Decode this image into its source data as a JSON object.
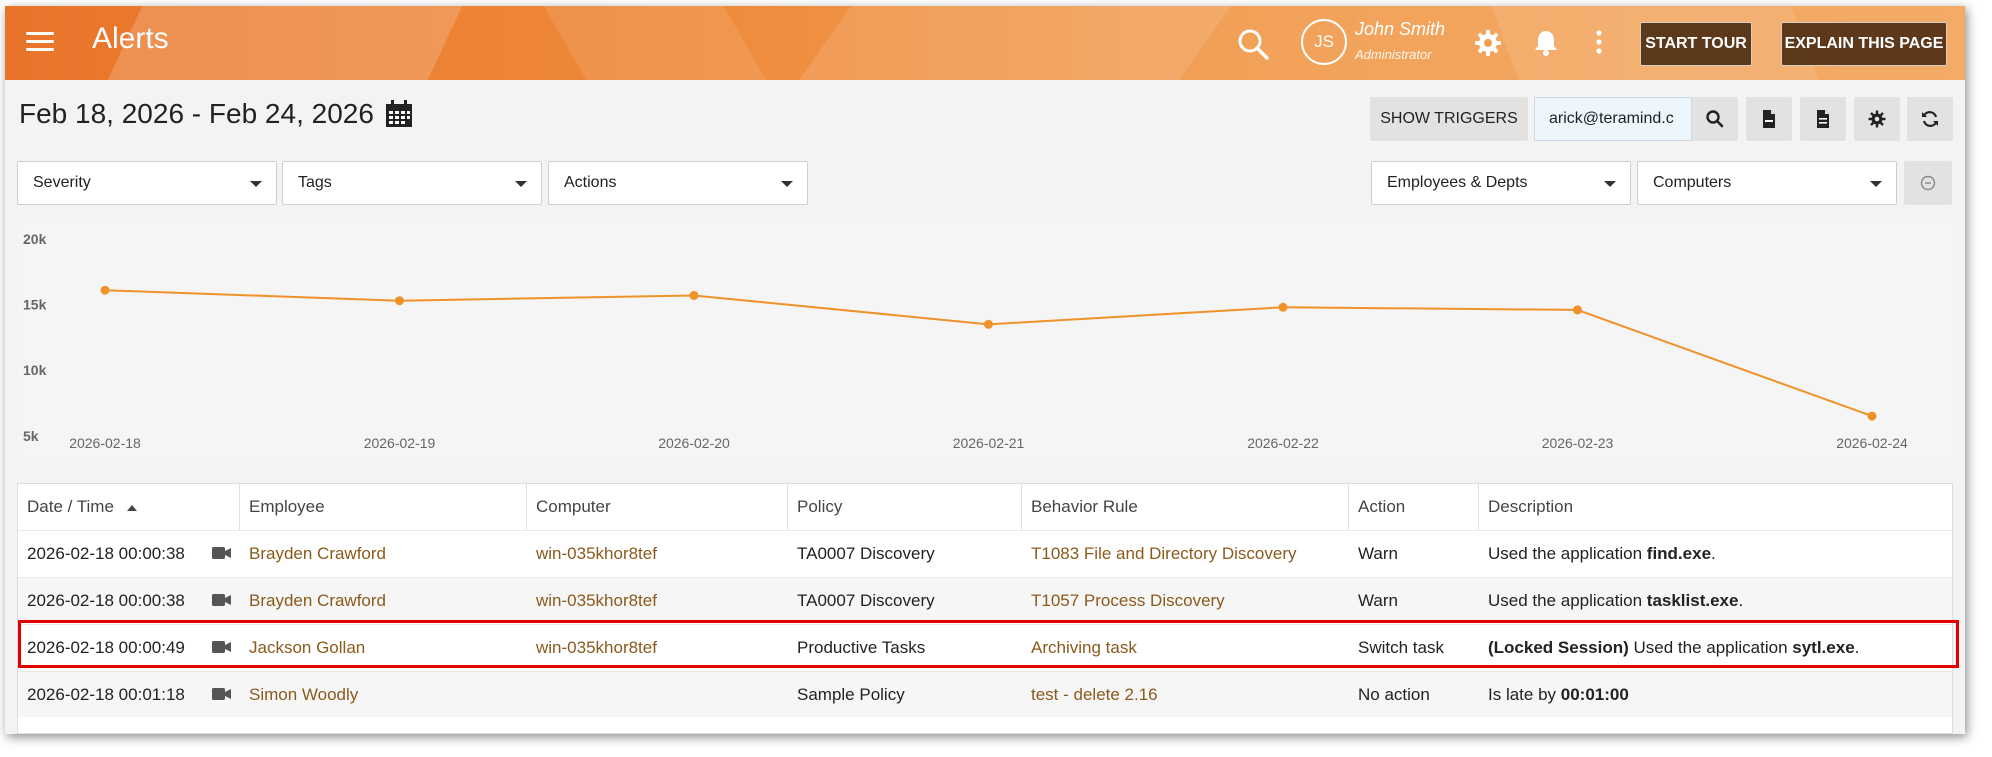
{
  "header": {
    "title": "Alerts",
    "user_initials": "JS",
    "user_name": "John Smith",
    "user_role": "Administrator",
    "start_tour": "START TOUR",
    "explain_page": "EXPLAIN THIS PAGE"
  },
  "toolbar": {
    "date_range": "Feb 18, 2026 - Feb 24, 2026",
    "show_triggers": "SHOW TRIGGERS",
    "search_value": "arick@teramind.c"
  },
  "filters": {
    "severity": "Severity",
    "tags": "Tags",
    "actions": "Actions",
    "employees": "Employees & Depts",
    "computers": "Computers"
  },
  "colors": {
    "accent": "#e8742a",
    "link": "#8a5a1c",
    "chart_line": "#f0922a",
    "highlight": "#e00000"
  },
  "chart_data": {
    "type": "line",
    "x": [
      "2026-02-18",
      "2026-02-19",
      "2026-02-20",
      "2026-02-21",
      "2026-02-22",
      "2026-02-23",
      "2026-02-24"
    ],
    "series": [
      {
        "values": [
          16100,
          15300,
          15700,
          13500,
          14800,
          14600,
          6500
        ]
      }
    ],
    "yticks": [
      "20k",
      "15k",
      "10k",
      "5k"
    ],
    "ytick_values": [
      20000,
      15000,
      10000,
      5000
    ],
    "ylim": [
      3000,
      21000
    ],
    "grid": false,
    "title": "",
    "xlabel": "",
    "ylabel": ""
  },
  "table": {
    "columns": [
      "Date / Time",
      "Employee",
      "Computer",
      "Policy",
      "Behavior Rule",
      "Action",
      "Description"
    ],
    "rows": [
      {
        "datetime": "2026-02-18 00:00:38",
        "employee": "Brayden Crawford",
        "computer": "win-035khor8tef",
        "policy": "TA0007 Discovery",
        "rule": "T1083 File and Directory Discovery",
        "action": "Warn",
        "desc_prefix": "",
        "desc_text": "Used the application ",
        "desc_bold": "find.exe",
        "desc_suffix": "."
      },
      {
        "datetime": "2026-02-18 00:00:38",
        "employee": "Brayden Crawford",
        "computer": "win-035khor8tef",
        "policy": "TA0007 Discovery",
        "rule": "T1057 Process Discovery",
        "action": "Warn",
        "desc_prefix": "",
        "desc_text": "Used the application ",
        "desc_bold": "tasklist.exe",
        "desc_suffix": "."
      },
      {
        "datetime": "2026-02-18 00:00:49",
        "employee": "Jackson Gollan",
        "computer": "win-035khor8tef",
        "policy": "Productive Tasks",
        "rule": "Archiving task",
        "action": "Switch task",
        "desc_prefix": "(Locked Session)",
        "desc_text": " Used the application ",
        "desc_bold": "sytl.exe",
        "desc_suffix": "."
      },
      {
        "datetime": "2026-02-18 00:01:18",
        "employee": "Simon Woodly",
        "computer": "",
        "policy": "Sample Policy",
        "rule": "test - delete 2.16",
        "action": "No action",
        "desc_prefix": "",
        "desc_text": "Is late by ",
        "desc_bold": "00:01:00",
        "desc_suffix": ""
      }
    ]
  }
}
